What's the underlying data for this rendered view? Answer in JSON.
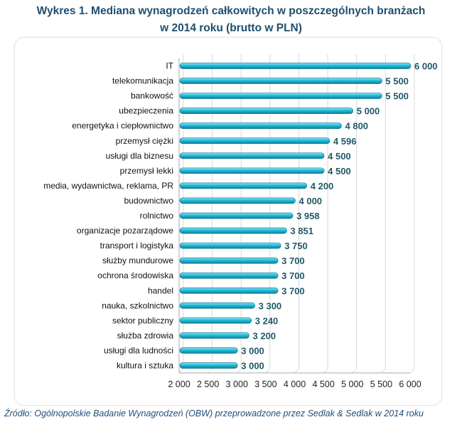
{
  "chart_data": {
    "type": "bar",
    "orientation": "horizontal",
    "title": "Wykres 1. Mediana wynagrodzeń całkowitych w poszczególnych branżach",
    "subtitle": "w 2014 roku (brutto w PLN)",
    "categories": [
      "IT",
      "telekomunikacja",
      "bankowość",
      "ubezpieczenia",
      "energetyka i ciepłownictwo",
      "przemysł ciężki",
      "usługi dla biznesu",
      "przemysł lekki",
      "media, wydawnictwa, reklama, PR",
      "budownictwo",
      "rolnictwo",
      "organizacje pozarządowe",
      "transport i logistyka",
      "służby mundurowe",
      "ochrona środowiska",
      "handel",
      "nauka, szkolnictwo",
      "sektor publiczny",
      "służba zdrowia",
      "usługi dla ludności",
      "kultura i sztuka"
    ],
    "values": [
      6000,
      5500,
      5500,
      5000,
      4800,
      4596,
      4500,
      4500,
      4200,
      4000,
      3958,
      3851,
      3750,
      3700,
      3700,
      3700,
      3300,
      3240,
      3200,
      3000,
      3000
    ],
    "data_labels": [
      "6 000",
      "5 500",
      "5 500",
      "5 000",
      "4 800",
      "4 596",
      "4 500",
      "4 500",
      "4 200",
      "4 000",
      "3 958",
      "3 851",
      "3 750",
      "3 700",
      "3 700",
      "3 700",
      "3 300",
      "3 240",
      "3 200",
      "3 000",
      "3 000"
    ],
    "xlim": [
      2000,
      6000
    ],
    "xticks": [
      "2 000",
      "2 500",
      "3 000",
      "3 500",
      "4 000",
      "4 500",
      "5 000",
      "5 500",
      "6 000"
    ],
    "grid": true,
    "bar_color": "#1fb8d6",
    "label_color": "#215868"
  },
  "source": "Źródło: Ogólnopolskie Badanie Wynagrodzeń (OBW) przeprowadzone przez Sedlak & Sedlak w 2014 roku"
}
